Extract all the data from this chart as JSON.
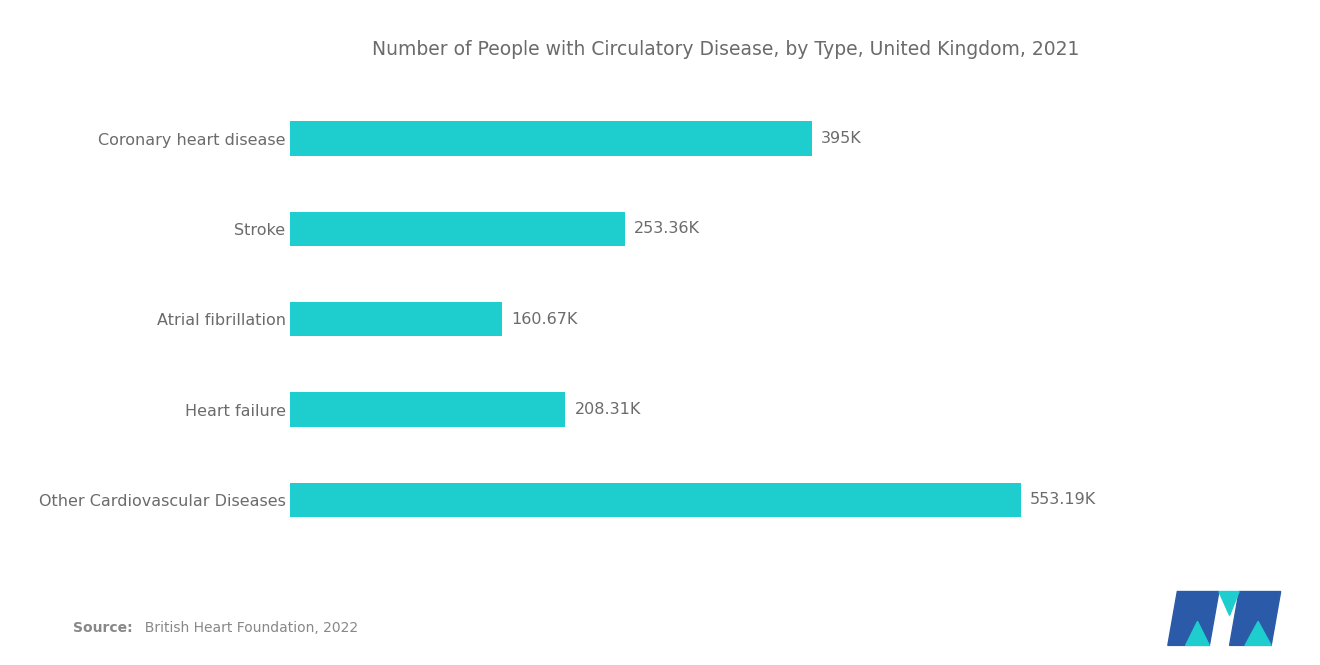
{
  "title": "Number of People with Circulatory Disease, by Type, United Kingdom, 2021",
  "categories": [
    "Other Cardiovascular Diseases",
    "Heart failure",
    "Atrial fibrillation",
    "Stroke",
    "Coronary heart disease"
  ],
  "values": [
    553.19,
    208.31,
    160.67,
    253.36,
    395
  ],
  "labels": [
    "553.19K",
    "208.31K",
    "160.67K",
    "253.36K",
    "395K"
  ],
  "bar_color": "#1ECECE",
  "title_color": "#6b6b6b",
  "label_color": "#6b6b6b",
  "category_color": "#6b6b6b",
  "source_bold": "Source:",
  "source_rest": "  British Heart Foundation, 2022",
  "background_color": "#ffffff",
  "bar_height": 0.38,
  "xlim": [
    0,
    660
  ],
  "title_fontsize": 13.5,
  "label_fontsize": 11.5,
  "category_fontsize": 11.5,
  "logo_blue": "#2B5BA8",
  "logo_teal": "#1ECECE"
}
